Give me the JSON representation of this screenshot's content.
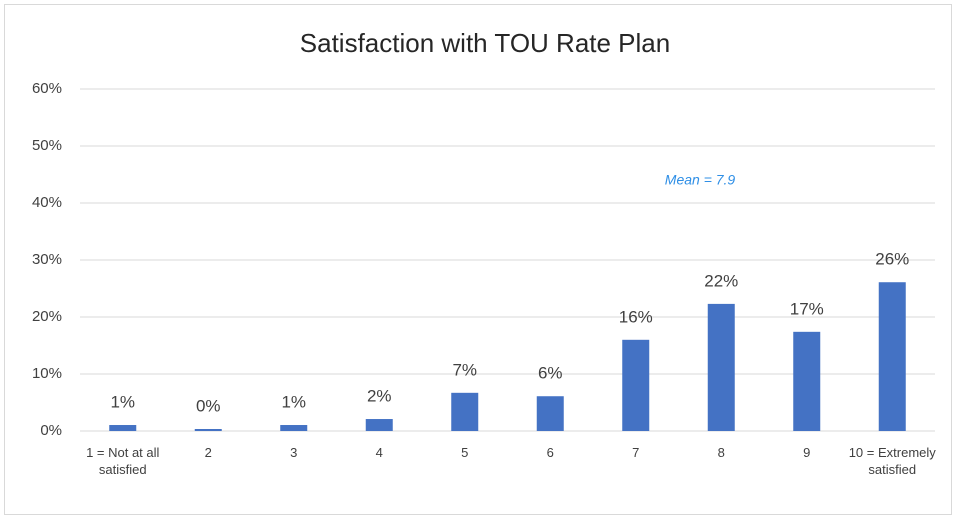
{
  "chart_data": {
    "type": "bar",
    "title": "Satisfaction with TOU Rate Plan",
    "annotation": "Mean = 7.9",
    "categories": [
      "1 = Not at all satisfied",
      "2",
      "3",
      "4",
      "5",
      "6",
      "7",
      "8",
      "9",
      "10 = Extremely satisfied"
    ],
    "values": [
      1.05,
      0.35,
      1.05,
      2.1,
      6.7,
      6.1,
      16.0,
      22.3,
      17.4,
      26.1
    ],
    "value_labels": [
      "1%",
      "0%",
      "1%",
      "2%",
      "7%",
      "6%",
      "16%",
      "22%",
      "17%",
      "26%"
    ],
    "color": "#4472c4",
    "ylim": [
      0,
      60
    ],
    "yticks": [
      {
        "value": 0,
        "label": "0%"
      },
      {
        "value": 10,
        "label": "10%"
      },
      {
        "value": 20,
        "label": "20%"
      },
      {
        "value": 30,
        "label": "30%"
      },
      {
        "value": 40,
        "label": "40%"
      },
      {
        "value": 50,
        "label": "50%"
      },
      {
        "value": 60,
        "label": "60%"
      }
    ],
    "grid": true
  }
}
